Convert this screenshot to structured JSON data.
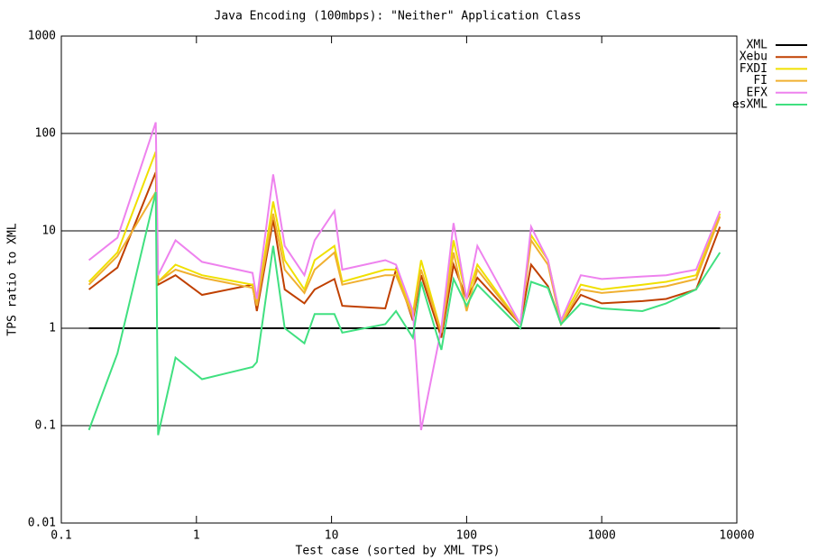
{
  "chart_data": {
    "type": "line",
    "title": "Java Encoding (100mbps): \"Neither\" Application Class",
    "x_label": "Test case (sorted by XML TPS)",
    "y_label": "TPS ratio to XML",
    "log_x": true,
    "log_y": true,
    "grid": true,
    "legend": "top-right",
    "xlim": [
      0.1,
      10000
    ],
    "xticks": [
      0.1,
      1,
      10,
      100,
      1000,
      10000
    ],
    "ylim": [
      0.01,
      1000
    ],
    "yticks": [
      0.01,
      0.1,
      1,
      10,
      100,
      1000
    ],
    "x": [
      0.16,
      0.26,
      0.5,
      0.52,
      0.7,
      1.1,
      2.6,
      2.8,
      3.7,
      4.5,
      6.3,
      7.5,
      10.5,
      12,
      25,
      30,
      40,
      46,
      65,
      80,
      100,
      120,
      250,
      300,
      400,
      500,
      700,
      1000,
      2000,
      3000,
      5000,
      7500
    ],
    "series": [
      {
        "name": "XML",
        "color": "#000000",
        "values": [
          1,
          1,
          1,
          1,
          1,
          1,
          1,
          1,
          1,
          1,
          1,
          1,
          1,
          1,
          1,
          1,
          1,
          1,
          1,
          1,
          1,
          1,
          1,
          1,
          1,
          1,
          1,
          1,
          1,
          1,
          1,
          1
        ]
      },
      {
        "name": "Xebu",
        "color": "#c04000",
        "values": [
          2.5,
          4.2,
          40,
          2.8,
          3.5,
          2.2,
          2.8,
          1.5,
          13,
          2.5,
          1.8,
          2.5,
          3.2,
          1.7,
          1.6,
          4,
          1.2,
          3.5,
          0.8,
          4.5,
          2,
          3.3,
          1.1,
          4.5,
          2.7,
          1.1,
          2.2,
          1.8,
          1.9,
          2,
          2.5,
          11
        ]
      },
      {
        "name": "FXDI",
        "color": "#f0e000",
        "values": [
          3,
          6,
          65,
          3,
          4.5,
          3.5,
          2.8,
          1.8,
          20,
          5,
          2.5,
          5,
          7,
          3,
          4,
          4,
          1.4,
          5,
          0.9,
          8,
          2,
          4.5,
          1.1,
          9,
          5,
          1.2,
          2.8,
          2.5,
          2.8,
          3,
          3.5,
          15
        ]
      },
      {
        "name": "FI",
        "color": "#f0b030",
        "values": [
          2.8,
          5.5,
          25,
          3,
          4,
          3.3,
          2.6,
          1.7,
          15,
          4,
          2.3,
          4,
          6,
          2.8,
          3.5,
          3.5,
          1.3,
          4,
          0.9,
          6,
          1.5,
          4,
          1.1,
          8,
          4.5,
          1.1,
          2.5,
          2.3,
          2.5,
          2.7,
          3.2,
          14
        ]
      },
      {
        "name": "EFX",
        "color": "#ee82ee",
        "values": [
          5,
          8.5,
          130,
          3.5,
          8,
          4.8,
          3.7,
          2,
          38,
          7,
          3.5,
          8,
          16,
          4,
          5,
          4.5,
          1.5,
          0.09,
          1,
          12,
          2,
          7,
          1.1,
          11,
          5,
          1.2,
          3.5,
          3.2,
          3.4,
          3.5,
          4,
          16
        ]
      },
      {
        "name": "esXML",
        "color": "#40e080",
        "values": [
          0.09,
          0.55,
          25,
          0.08,
          0.5,
          0.3,
          0.4,
          0.45,
          7,
          1,
          0.7,
          1.4,
          1.4,
          0.9,
          1.1,
          1.5,
          0.8,
          3,
          0.6,
          3.2,
          1.7,
          2.8,
          1,
          3,
          2.6,
          1.1,
          1.8,
          1.6,
          1.5,
          1.8,
          2.5,
          6
        ]
      }
    ]
  }
}
